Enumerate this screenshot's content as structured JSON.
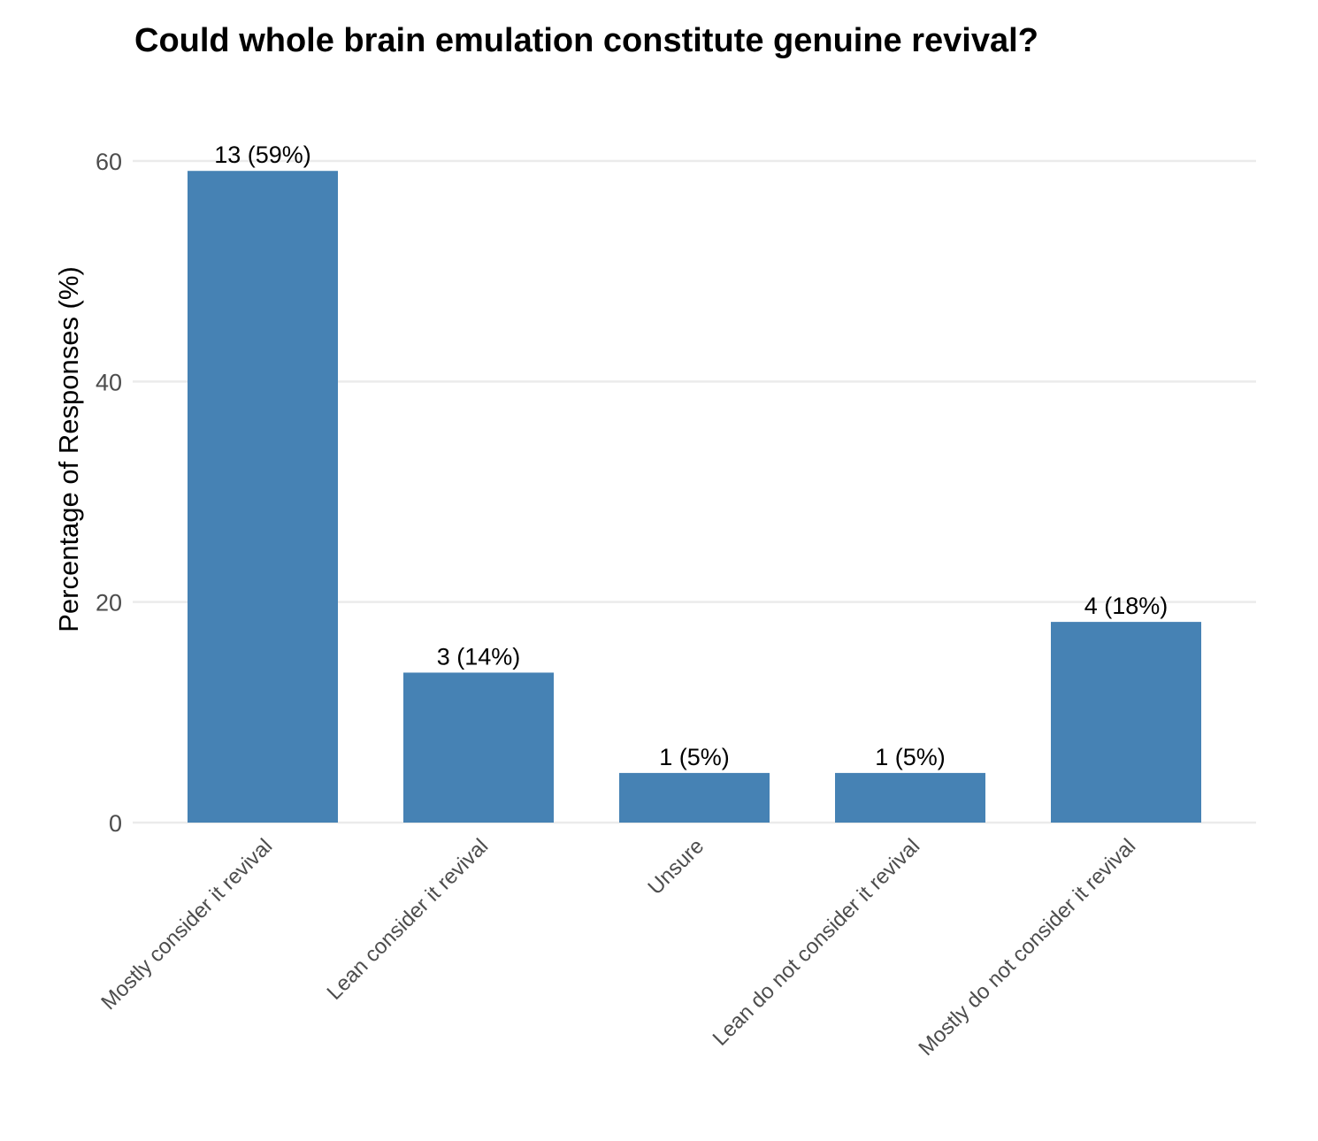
{
  "chart_data": {
    "type": "bar",
    "title": "Could whole brain emulation constitute genuine revival?",
    "xlabel": "",
    "ylabel": "Percentage of Responses (%)",
    "categories": [
      "Mostly consider it revival",
      "Lean consider it revival",
      "Unsure",
      "Lean do not consider it revival",
      "Mostly do not consider it revival"
    ],
    "values": [
      59.1,
      13.6,
      4.5,
      4.5,
      18.2
    ],
    "counts": [
      13,
      3,
      1,
      1,
      4
    ],
    "data_labels": [
      "13 (59%)",
      "3 (14%)",
      "1 (5%)",
      "1 (5%)",
      "4 (18%)"
    ],
    "ylim": [
      0,
      60
    ],
    "yticks": [
      0,
      20,
      40,
      60
    ],
    "ytick_labels": [
      "0",
      "20",
      "40",
      "60"
    ],
    "grid": true,
    "legend": "none",
    "bar_color": "#4682b4"
  }
}
